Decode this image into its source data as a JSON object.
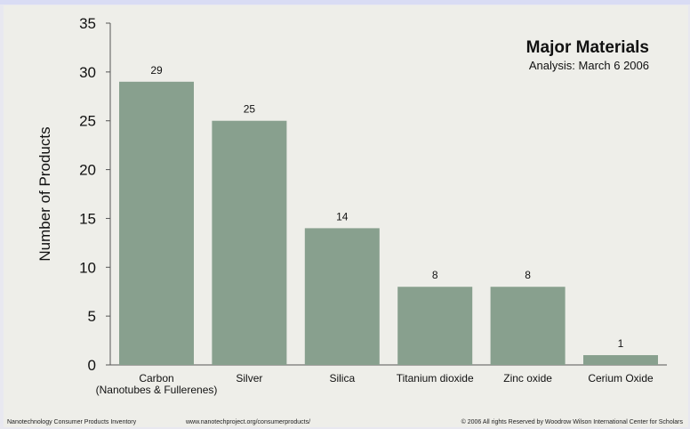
{
  "chart_data": {
    "type": "bar",
    "title": "Major Materials",
    "subtitle": "Analysis: March 6 2006",
    "xlabel": "",
    "ylabel": "Number of Products",
    "categories": [
      [
        "Carbon",
        "(Nanotubes & Fullerenes)"
      ],
      [
        "Silver"
      ],
      [
        "Silica"
      ],
      [
        "Titanium dioxide"
      ],
      [
        "Zinc oxide"
      ],
      [
        "Cerium Oxide"
      ]
    ],
    "values": [
      29,
      25,
      14,
      8,
      8,
      1
    ],
    "ylim": [
      0,
      35
    ],
    "yticks": [
      0,
      5,
      10,
      15,
      20,
      25,
      30,
      35
    ],
    "grid": false,
    "bar_color": "#88a08e",
    "background": "#eeeee9"
  },
  "footer": {
    "left": "Nanotechnology Consumer Products Inventory",
    "url": "www.nanotechproject.org/consumerproducts/",
    "right": "© 2006 All rights Reserved by Woodrow Wilson International Center for Scholars"
  }
}
